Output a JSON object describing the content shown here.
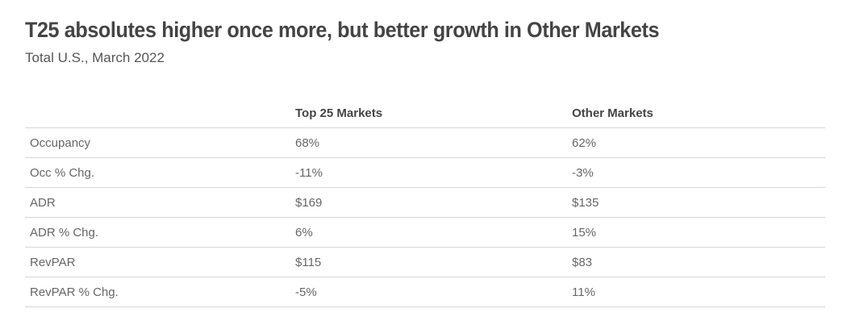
{
  "title": "T25 absolutes higher once more, but better growth in Other Markets",
  "subtitle": "Total U.S., March 2022",
  "chart_data": {
    "type": "table",
    "columns": [
      "",
      "Top 25 Markets",
      "Other Markets"
    ],
    "rows": [
      [
        "Occupancy",
        "68%",
        "62%"
      ],
      [
        "Occ % Chg.",
        "-11%",
        "-3%"
      ],
      [
        "ADR",
        "$169",
        "$135"
      ],
      [
        "ADR % Chg.",
        "6%",
        "15%"
      ],
      [
        "RevPAR",
        "$115",
        "$83"
      ],
      [
        "RevPAR % Chg.",
        "-5%",
        "11%"
      ]
    ]
  }
}
